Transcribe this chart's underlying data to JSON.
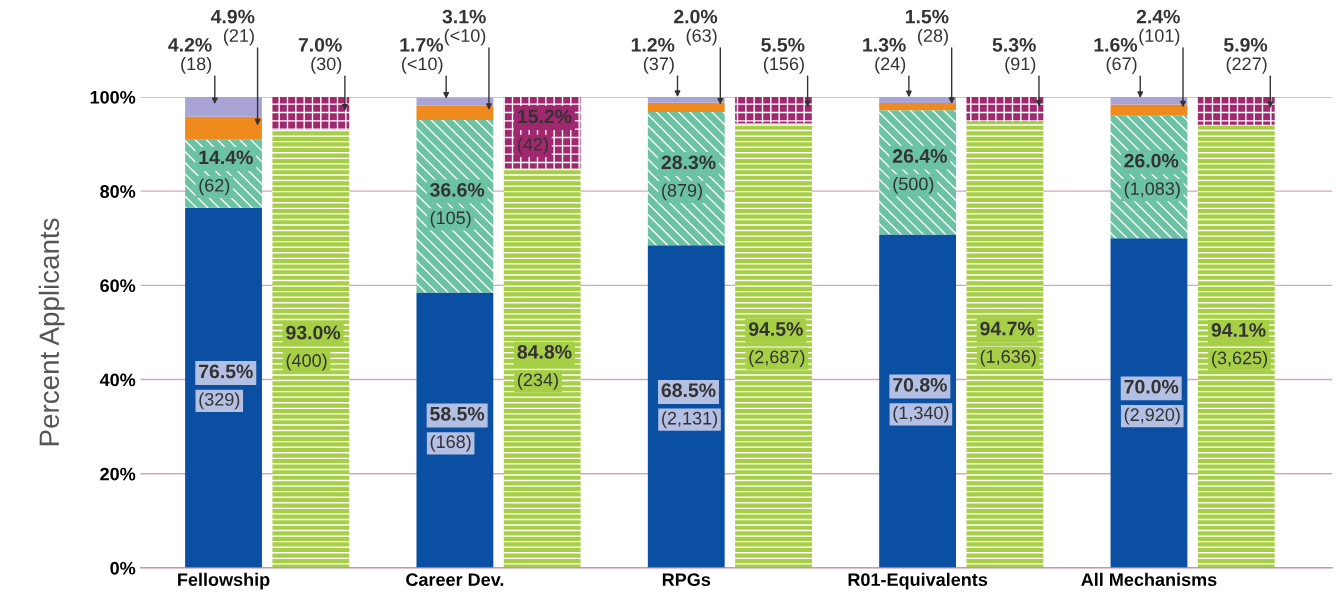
{
  "chart_data": {
    "type": "bar",
    "stacked": true,
    "ylabel": "Percent Applicants",
    "categories": [
      "Fellowship",
      null,
      "Career Dev.",
      null,
      "RPGs",
      null,
      "R01-Equivalents",
      null,
      "All Mechanisms",
      null
    ],
    "series": [
      {
        "color": "#0b4fa3",
        "values": [
          76.5,
          null,
          58.5,
          null,
          68.5,
          null,
          70.8,
          null,
          70.0,
          null
        ],
        "value_labels": [
          "76.5%\n(329)",
          null,
          "58.5%\n(168)",
          null,
          "68.5%\n(2,131)",
          null,
          "70.8%\n(1,340)",
          null,
          "70.0%\n(2,920)",
          null
        ]
      },
      {
        "color": "#6cc3a3",
        "values": [
          14.4,
          null,
          36.6,
          null,
          28.3,
          null,
          26.4,
          null,
          26.0,
          null
        ],
        "value_labels": [
          "14.4%\n(62)",
          null,
          "36.6%\n(105)",
          null,
          "28.3%\n(879)",
          null,
          "26.4%\n(500)",
          null,
          "26.0%\n(1,083)",
          null
        ]
      },
      {
        "color": "#ee8a1e",
        "values": [
          4.9,
          null,
          3.1,
          null,
          2.0,
          null,
          1.5,
          null,
          2.4,
          null
        ],
        "value_labels": [
          "4.9%\n(21)",
          null,
          "3.1%\n(<10)",
          null,
          "2.0%\n(63)",
          null,
          "1.5%\n(28)",
          null,
          "2.4%\n(101)",
          null
        ]
      },
      {
        "color": "#a9a3d6",
        "values": [
          4.2,
          null,
          1.7,
          null,
          1.2,
          null,
          1.3,
          null,
          1.6,
          null
        ],
        "value_labels": [
          "4.2%\n(18)",
          null,
          "1.7%\n(<10)",
          null,
          "1.2%\n(37)",
          null,
          "1.3%\n(24)",
          null,
          "1.6%\n(67)",
          null
        ]
      },
      {
        "color": "#a7cf45",
        "values": [
          null,
          93.0,
          null,
          84.8,
          null,
          94.5,
          null,
          94.7,
          null,
          94.1
        ],
        "value_labels": [
          null,
          "93.0%\n(400)",
          null,
          "84.8%\n(234)",
          null,
          "94.5%\n(2,687)",
          null,
          "94.7%\n(1,636)",
          null,
          "94.1%\n(3,625)"
        ]
      },
      {
        "color": "#a0286e",
        "values": [
          null,
          7.0,
          null,
          15.2,
          null,
          5.5,
          null,
          5.3,
          null,
          5.9
        ],
        "value_labels": [
          null,
          "7.0%\n(30)",
          null,
          "15.2%\n(42)",
          null,
          "5.5%\n(156)",
          null,
          "5.3%\n(91)",
          null,
          "5.9%\n(227)"
        ]
      }
    ],
    "ylim": [
      0,
      100
    ],
    "yticks": [
      {
        "value": 0,
        "label": "0%"
      },
      {
        "value": 20,
        "label": "20%"
      },
      {
        "value": 40,
        "label": "40%"
      },
      {
        "value": 60,
        "label": "60%"
      },
      {
        "value": 80,
        "label": "80%"
      },
      {
        "value": 100,
        "label": "100%"
      }
    ],
    "grid": "y",
    "legend": false
  }
}
